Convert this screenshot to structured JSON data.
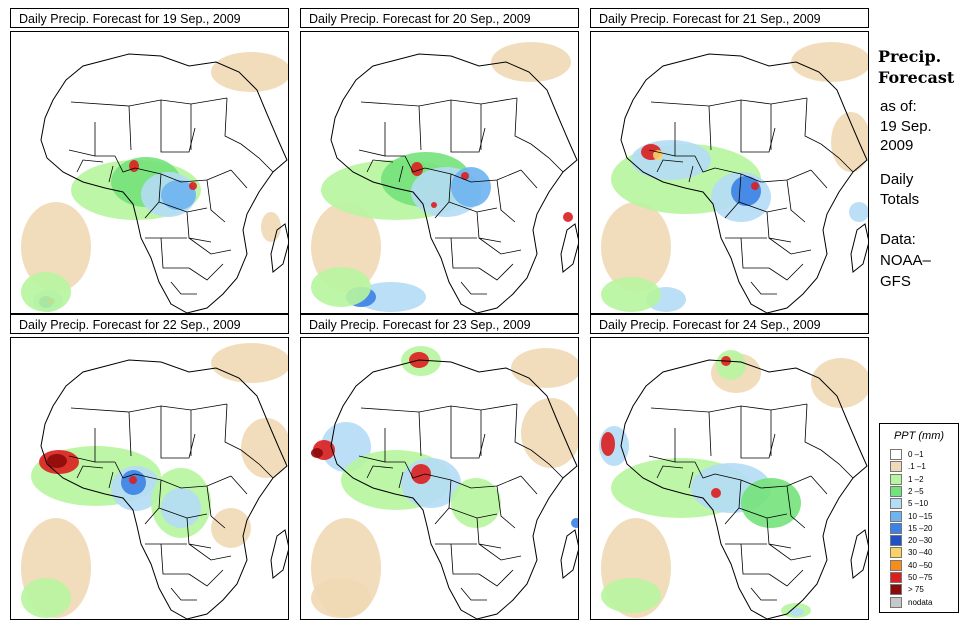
{
  "panels": [
    {
      "title": "Daily Precip. Forecast for  19 Sep., 2009"
    },
    {
      "title": "Daily Precip. Forecast for  20 Sep., 2009"
    },
    {
      "title": "Daily Precip. Forecast for  21 Sep., 2009"
    },
    {
      "title": "Daily Precip. Forecast for  22 Sep., 2009"
    },
    {
      "title": "Daily Precip. Forecast for  23 Sep., 2009"
    },
    {
      "title": "Daily Precip. Forecast for  24 Sep., 2009"
    }
  ],
  "side": {
    "title_line1": "Precip.",
    "title_line2": "Forecast",
    "asof": "as of:",
    "date_line1": "19 Sep.",
    "date_line2": "2009",
    "totals_line1": "Daily",
    "totals_line2": "Totals",
    "data_line1": "Data:",
    "data_line2": "NOAA–",
    "data_line3": "GFS"
  },
  "legend": {
    "title": "PPT (mm)",
    "items": [
      {
        "label": "0 –1",
        "color": "#ffffff"
      },
      {
        "label": ".1 –1",
        "color": "#f0d9b5"
      },
      {
        "label": "1 –2",
        "color": "#b7f59e"
      },
      {
        "label": "2 –5",
        "color": "#74e27a"
      },
      {
        "label": "5 –10",
        "color": "#b4dcf5"
      },
      {
        "label": "10 –15",
        "color": "#6eb4f0"
      },
      {
        "label": "15 –20",
        "color": "#3c82e6"
      },
      {
        "label": "20 –30",
        "color": "#1e50c8"
      },
      {
        "label": "30 –40",
        "color": "#fad264"
      },
      {
        "label": "40 –50",
        "color": "#f58c1e"
      },
      {
        "label": "50 –75",
        "color": "#dc1e1e"
      },
      {
        "label": "> 75",
        "color": "#8c0a0a"
      },
      {
        "label": "nodata",
        "color": "#c8c8c8"
      }
    ]
  }
}
